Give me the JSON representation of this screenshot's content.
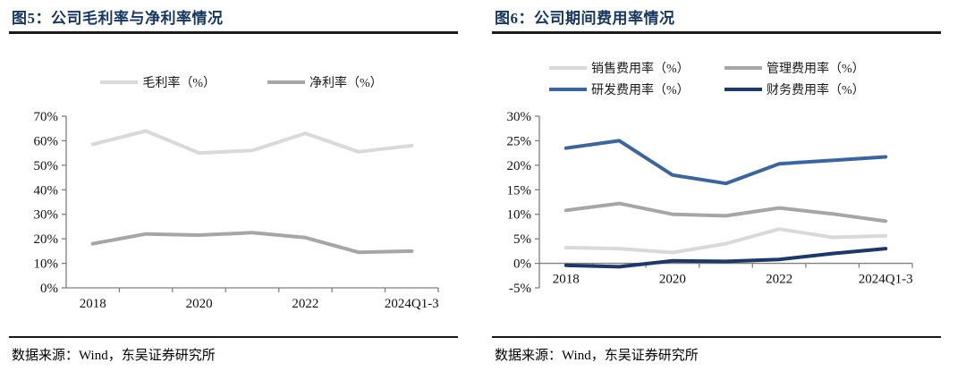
{
  "style": {
    "title_color": "#17365d",
    "rule_color": "#1a1a1a",
    "axis_color": "#808080",
    "accent_blue": "#3e6599",
    "accent_navy": "#1f3864",
    "light_gray": "#d9d9d9",
    "mid_gray": "#a6a6a6"
  },
  "figure5": {
    "title": "图5：公司毛利率与净利率情况",
    "source": "数据来源：Wind，东吴证券研究所",
    "chart_data": {
      "type": "line",
      "categories": [
        "2018",
        "2019",
        "2020",
        "2021",
        "2022",
        "2023",
        "2024Q1-3"
      ],
      "visible_x_labels": [
        "2018",
        "2020",
        "2022",
        "2024Q1-3"
      ],
      "series": [
        {
          "name": "毛利率（%）",
          "color": "#d9d9d9",
          "values": [
            58.5,
            64.0,
            55.0,
            56.0,
            63.0,
            55.5,
            58.0
          ]
        },
        {
          "name": "净利率（%）",
          "color": "#a6a6a6",
          "values": [
            18.0,
            22.0,
            21.5,
            22.5,
            20.5,
            14.5,
            15.0
          ]
        }
      ],
      "legend_rows": [
        [
          "毛利率（%）",
          "净利率（%）"
        ]
      ],
      "legend_position": "top",
      "grid": false,
      "ylim": [
        0,
        70
      ],
      "ytick_step": 10,
      "ytick_suffix": "%"
    }
  },
  "figure6": {
    "title": "图6：公司期间费用率情况",
    "source": "数据来源：Wind，东吴证券研究所",
    "chart_data": {
      "type": "line",
      "categories": [
        "2018",
        "2019",
        "2020",
        "2021",
        "2022",
        "2023",
        "2024Q1-3"
      ],
      "visible_x_labels": [
        "2018",
        "2020",
        "2022",
        "2024Q1-3"
      ],
      "series": [
        {
          "name": "销售费用率（%）",
          "color": "#d9d9d9",
          "values": [
            3.2,
            3.0,
            2.2,
            4.0,
            7.0,
            5.3,
            5.6
          ]
        },
        {
          "name": "管理费用率（%）",
          "color": "#a6a6a6",
          "values": [
            10.8,
            12.2,
            10.0,
            9.7,
            11.3,
            10.1,
            8.6
          ]
        },
        {
          "name": "研发费用率（%）",
          "color": "#3e6599",
          "values": [
            23.5,
            25.0,
            18.0,
            16.3,
            20.3,
            21.0,
            21.7
          ]
        },
        {
          "name": "财务费用率（%）",
          "color": "#1f3864",
          "values": [
            -0.4,
            -0.7,
            0.5,
            0.4,
            0.8,
            2.0,
            3.0
          ]
        }
      ],
      "legend_rows": [
        [
          "销售费用率（%）",
          "管理费用率（%）"
        ],
        [
          "研发费用率（%）",
          "财务费用率（%）"
        ]
      ],
      "legend_position": "top",
      "grid": false,
      "ylim": [
        -5,
        30
      ],
      "ytick_step": 5,
      "ytick_suffix": "%"
    }
  }
}
